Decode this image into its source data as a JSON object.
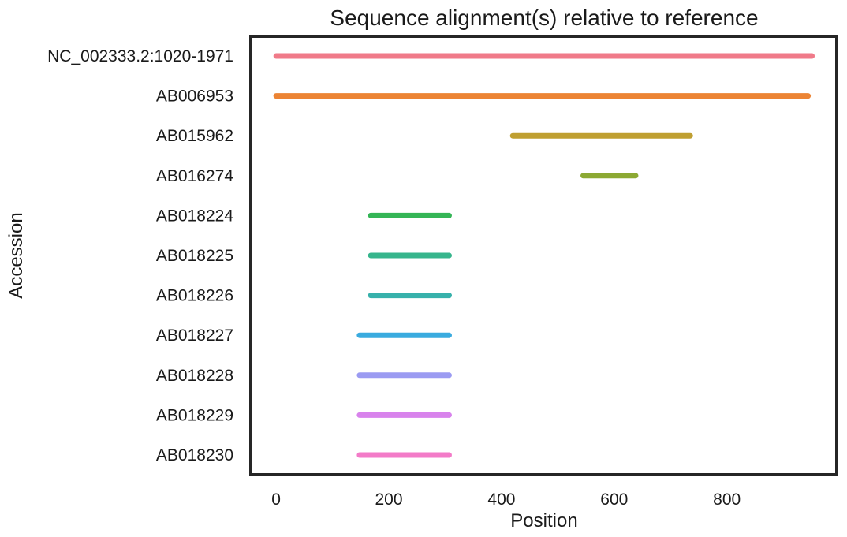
{
  "chart_data": {
    "type": "line",
    "title": "Sequence alignment(s) relative to reference",
    "xlabel": "Position",
    "ylabel": "Accession",
    "xlim": [
      -45,
      995
    ],
    "xticks": [
      0,
      200,
      400,
      600,
      800
    ],
    "grid": false,
    "legend": "none",
    "series": [
      {
        "name": "NC_002333.2:1020-1971",
        "start": 0,
        "end": 951,
        "color": "#f07a89"
      },
      {
        "name": "AB006953",
        "start": 0,
        "end": 944,
        "color": "#ec8434"
      },
      {
        "name": "AB015962",
        "start": 420,
        "end": 735,
        "color": "#bf9f31"
      },
      {
        "name": "AB016274",
        "start": 545,
        "end": 638,
        "color": "#8ca933"
      },
      {
        "name": "AB018224",
        "start": 168,
        "end": 307,
        "color": "#34b556"
      },
      {
        "name": "AB018225",
        "start": 168,
        "end": 307,
        "color": "#36b58c"
      },
      {
        "name": "AB018226",
        "start": 168,
        "end": 307,
        "color": "#37b1ab"
      },
      {
        "name": "AB018227",
        "start": 148,
        "end": 307,
        "color": "#3aabdf"
      },
      {
        "name": "AB018228",
        "start": 148,
        "end": 307,
        "color": "#9b9bf2"
      },
      {
        "name": "AB018229",
        "start": 148,
        "end": 307,
        "color": "#d883ec"
      },
      {
        "name": "AB018230",
        "start": 148,
        "end": 307,
        "color": "#f37bc8"
      }
    ]
  }
}
